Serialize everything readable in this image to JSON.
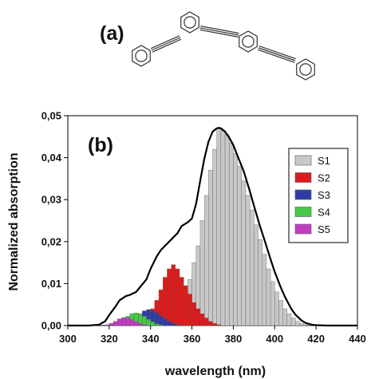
{
  "figure": {
    "panel_a_label": "(a)",
    "panel_b_label": "(b)"
  },
  "chart_data": {
    "type": "bar",
    "xlabel": "wavelength (nm)",
    "ylabel": "Normalized absorption",
    "xlim": [
      300,
      440
    ],
    "ylim": [
      0,
      0.05
    ],
    "xticks": [
      "300",
      "320",
      "340",
      "360",
      "380",
      "400",
      "420",
      "440"
    ],
    "yticks": [
      "0,00",
      "0,01",
      "0,02",
      "0,03",
      "0,04",
      "0,05"
    ],
    "legend_position": "top-right",
    "bin_width_nm": 2,
    "bin_centers": [
      315,
      317,
      319,
      321,
      323,
      325,
      327,
      329,
      331,
      333,
      335,
      337,
      339,
      341,
      343,
      345,
      347,
      349,
      351,
      353,
      355,
      357,
      359,
      361,
      363,
      365,
      367,
      369,
      371,
      373,
      375,
      377,
      379,
      381,
      383,
      385,
      387,
      389,
      391,
      393,
      395,
      397,
      399,
      401,
      403,
      405,
      407,
      409,
      411,
      413,
      415,
      417
    ],
    "series": [
      {
        "name": "S1",
        "color": "#c8c8c8",
        "values": [
          0,
          0,
          0,
          0,
          0,
          0,
          0,
          0,
          0,
          0,
          0,
          0,
          0,
          0,
          0,
          0.0003,
          0.0006,
          0.0012,
          0.002,
          0.003,
          0.005,
          0.0075,
          0.011,
          0.015,
          0.019,
          0.025,
          0.031,
          0.037,
          0.042,
          0.047,
          0.0465,
          0.0455,
          0.0435,
          0.041,
          0.038,
          0.0345,
          0.031,
          0.0275,
          0.024,
          0.0205,
          0.017,
          0.0135,
          0.0105,
          0.008,
          0.006,
          0.004,
          0.0028,
          0.0018,
          0.001,
          0.0005,
          0.0002,
          0.0001
        ]
      },
      {
        "name": "S2",
        "color": "#e01a1a",
        "values": [
          0,
          0,
          0,
          0,
          0,
          0,
          0,
          0,
          0,
          0,
          0.0003,
          0.0008,
          0.002,
          0.004,
          0.006,
          0.0085,
          0.0115,
          0.0135,
          0.0145,
          0.0135,
          0.0115,
          0.0095,
          0.0075,
          0.0055,
          0.004,
          0.0028,
          0.0018,
          0.001,
          0.0005,
          0.0002,
          0,
          0,
          0,
          0,
          0,
          0,
          0,
          0,
          0,
          0,
          0,
          0,
          0,
          0,
          0,
          0,
          0,
          0,
          0,
          0,
          0,
          0
        ]
      },
      {
        "name": "S3",
        "color": "#2e3da8",
        "values": [
          0,
          0,
          0,
          0,
          0,
          0,
          0.0002,
          0.0006,
          0.0012,
          0.002,
          0.0028,
          0.0035,
          0.0038,
          0.0035,
          0.003,
          0.0023,
          0.0016,
          0.001,
          0.0005,
          0.0002,
          0,
          0,
          0,
          0,
          0,
          0,
          0,
          0,
          0,
          0,
          0,
          0,
          0,
          0,
          0,
          0,
          0,
          0,
          0,
          0,
          0,
          0,
          0,
          0,
          0,
          0,
          0,
          0,
          0,
          0,
          0,
          0
        ]
      },
      {
        "name": "S4",
        "color": "#46c846",
        "values": [
          0,
          0,
          0,
          0,
          0.0003,
          0.0008,
          0.0015,
          0.0022,
          0.0028,
          0.003,
          0.0028,
          0.0022,
          0.0015,
          0.0009,
          0.0004,
          0.0002,
          0,
          0,
          0,
          0,
          0,
          0,
          0,
          0,
          0,
          0,
          0,
          0,
          0,
          0,
          0,
          0,
          0,
          0,
          0,
          0,
          0,
          0,
          0,
          0,
          0,
          0,
          0,
          0,
          0,
          0,
          0,
          0,
          0,
          0,
          0,
          0
        ]
      },
      {
        "name": "S5",
        "color": "#c23cc2",
        "values": [
          0,
          0,
          0.0002,
          0.0005,
          0.001,
          0.0016,
          0.0019,
          0.0018,
          0.0014,
          0.0009,
          0.0005,
          0.0002,
          0,
          0,
          0,
          0,
          0,
          0,
          0,
          0,
          0,
          0,
          0,
          0,
          0,
          0,
          0,
          0,
          0,
          0,
          0,
          0,
          0,
          0,
          0,
          0,
          0,
          0,
          0,
          0,
          0,
          0,
          0,
          0,
          0,
          0,
          0,
          0,
          0,
          0,
          0,
          0
        ]
      }
    ],
    "envelope": {
      "x": [
        300,
        310,
        315,
        318,
        320,
        323,
        325,
        328,
        330,
        333,
        335,
        338,
        340,
        343,
        345,
        348,
        350,
        353,
        355,
        358,
        360,
        362,
        364,
        366,
        368,
        370,
        372,
        373,
        374,
        376,
        378,
        380,
        382,
        385,
        388,
        390,
        393,
        395,
        398,
        400,
        403,
        405,
        408,
        410,
        413,
        415,
        418,
        420,
        425,
        440
      ],
      "y": [
        0,
        0,
        0.0002,
        0.001,
        0.0025,
        0.0045,
        0.006,
        0.007,
        0.0073,
        0.008,
        0.0092,
        0.011,
        0.0135,
        0.0165,
        0.018,
        0.0195,
        0.0205,
        0.022,
        0.0237,
        0.0246,
        0.0255,
        0.029,
        0.0345,
        0.0398,
        0.0438,
        0.0462,
        0.047,
        0.0471,
        0.047,
        0.0462,
        0.0448,
        0.043,
        0.0405,
        0.0368,
        0.032,
        0.0285,
        0.0235,
        0.0205,
        0.0158,
        0.0128,
        0.009,
        0.0068,
        0.004,
        0.0026,
        0.0012,
        0.0006,
        0.0002,
        0.0001,
        0,
        0
      ]
    }
  }
}
